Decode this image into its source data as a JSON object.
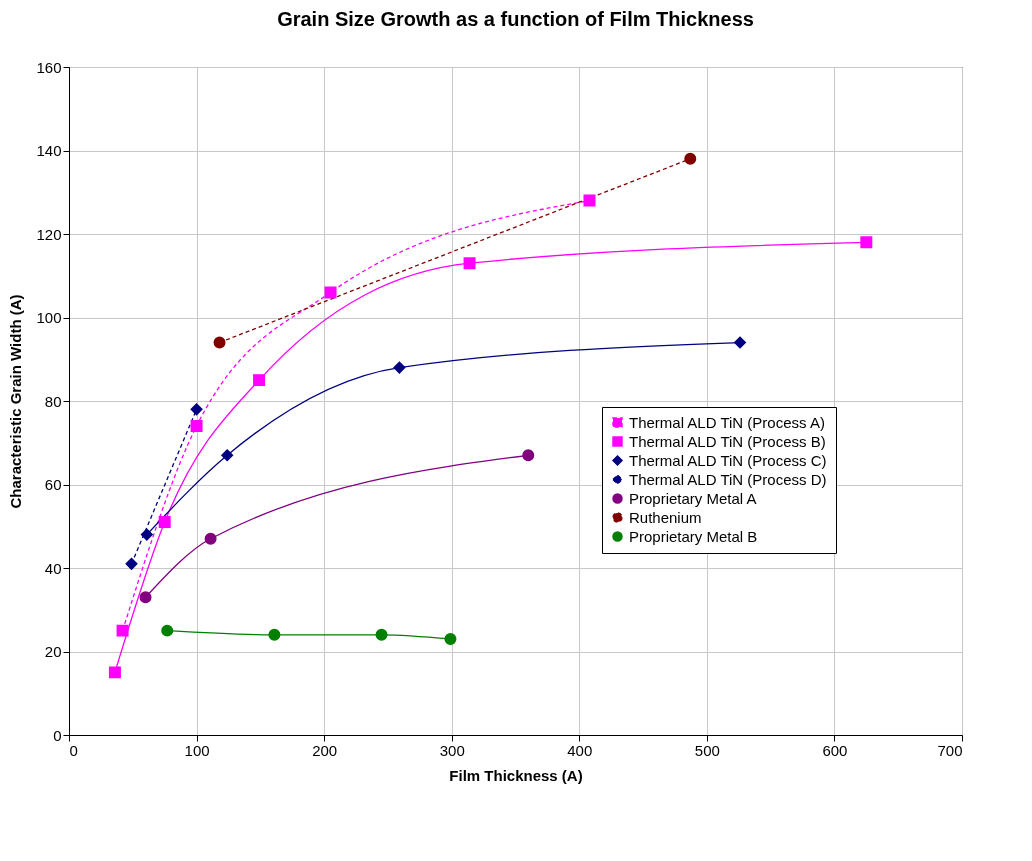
{
  "chart_data": {
    "type": "line",
    "title": "Grain Size Growth as a function of Film Thickness",
    "xlabel": "Film Thickness (A)",
    "ylabel": "Characteristic Grain Width (A)",
    "xlim": [
      0,
      700
    ],
    "xticks": [
      0,
      100,
      200,
      300,
      400,
      500,
      600,
      700
    ],
    "ylim": [
      0,
      160
    ],
    "yticks": [
      0,
      20,
      40,
      60,
      80,
      100,
      120,
      140,
      160
    ],
    "grid": true,
    "legend": "right",
    "series": [
      {
        "name": "Thermal ALD TiN (Process A)",
        "color": "#ff00ff",
        "line_style": "dashed",
        "marker": "square",
        "x": [
          42,
          100,
          205,
          408
        ],
        "values": [
          25,
          74,
          106,
          128
        ]
      },
      {
        "name": "Thermal ALD TiN (Process B)",
        "color": "#ff00ff",
        "line_style": "solid",
        "marker": "square",
        "x": [
          36,
          75,
          149,
          314,
          625
        ],
        "values": [
          15,
          51,
          85,
          113,
          118
        ]
      },
      {
        "name": "Thermal ALD TiN (Process C)",
        "color": "#000080",
        "line_style": "solid",
        "marker": "diamond",
        "x": [
          61,
          124,
          259,
          526
        ],
        "values": [
          48,
          67,
          88,
          94
        ]
      },
      {
        "name": "Thermal ALD TiN (Process D)",
        "color": "#000080",
        "line_style": "dashed",
        "marker": "diamond",
        "x": [
          49,
          100
        ],
        "values": [
          41,
          78
        ]
      },
      {
        "name": "Proprietary Metal A",
        "color": "#800080",
        "line_style": "solid",
        "marker": "circle",
        "x": [
          60,
          111,
          360
        ],
        "values": [
          33,
          47,
          67
        ]
      },
      {
        "name": "Ruthenium",
        "color": "#800000",
        "line_style": "dashed",
        "marker": "circle",
        "x": [
          118,
          487
        ],
        "values": [
          94,
          138
        ]
      },
      {
        "name": "Proprietary Metal B",
        "color": "#008000",
        "line_style": "solid",
        "marker": "circle",
        "x": [
          77,
          161,
          245,
          299
        ],
        "values": [
          25,
          24,
          24,
          23
        ]
      }
    ]
  }
}
